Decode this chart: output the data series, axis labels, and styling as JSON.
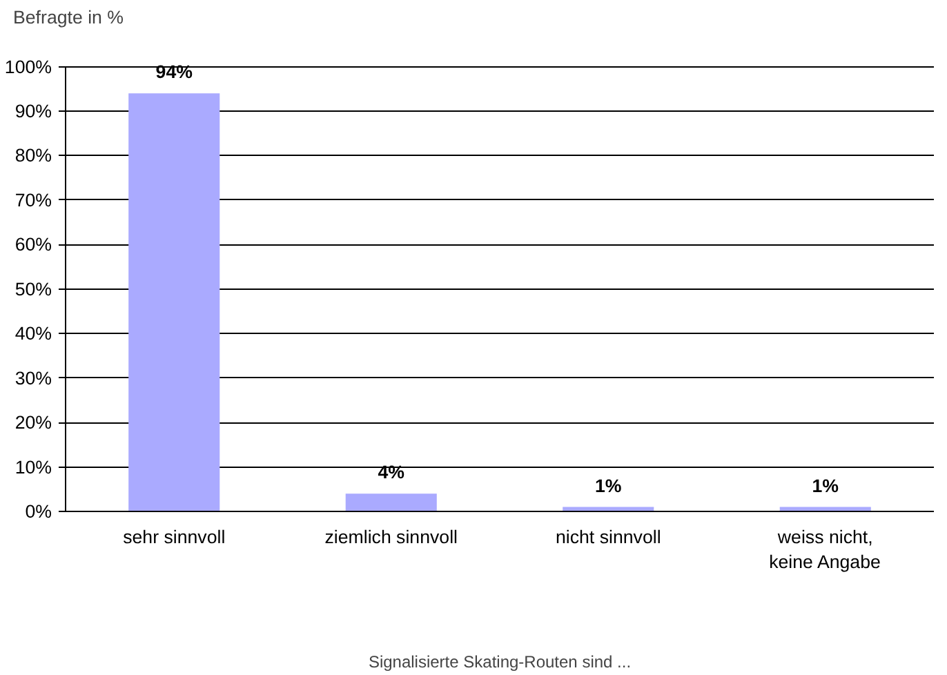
{
  "chart_data": {
    "type": "bar",
    "ylabel": "Befragte in %",
    "xlabel": "Signalisierte Skating-Routen sind ...",
    "categories": [
      "sehr sinnvoll",
      "ziemlich sinnvoll",
      "nicht sinnvoll",
      "weiss nicht, keine Angabe"
    ],
    "values": [
      94,
      4,
      1,
      1
    ],
    "value_labels": [
      "94%",
      "4%",
      "1%",
      "1%"
    ],
    "color": "#aaaaff",
    "ylim": [
      0,
      100
    ],
    "yticks": [
      {
        "value": 0,
        "label": "0%"
      },
      {
        "value": 10,
        "label": "10%"
      },
      {
        "value": 20,
        "label": "20%"
      },
      {
        "value": 30,
        "label": "30%"
      },
      {
        "value": 40,
        "label": "40%"
      },
      {
        "value": 50,
        "label": "50%"
      },
      {
        "value": 60,
        "label": "60%"
      },
      {
        "value": 70,
        "label": "70%"
      },
      {
        "value": 80,
        "label": "80%"
      },
      {
        "value": 90,
        "label": "90%"
      },
      {
        "value": 100,
        "label": "100%"
      }
    ],
    "grid": "y"
  }
}
